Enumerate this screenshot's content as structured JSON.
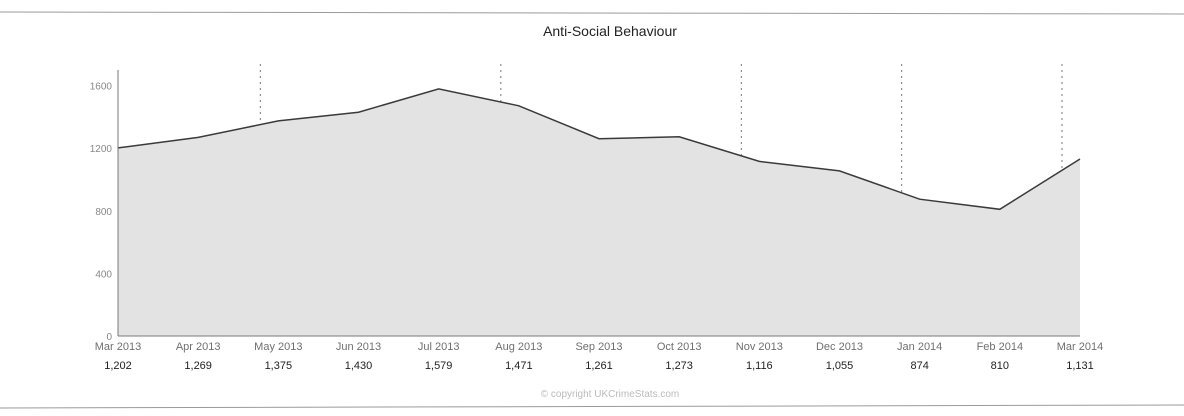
{
  "chart_data": {
    "type": "area",
    "title": "Anti-Social Behaviour",
    "categories": [
      "Mar 2013",
      "Apr 2013",
      "May 2013",
      "Jun 2013",
      "Jul 2013",
      "Aug 2013",
      "Sep 2013",
      "Oct 2013",
      "Nov 2013",
      "Dec 2013",
      "Jan 2014",
      "Feb 2014",
      "Mar 2014"
    ],
    "values": [
      1202,
      1269,
      1375,
      1430,
      1579,
      1471,
      1261,
      1273,
      1116,
      1055,
      874,
      810,
      1131
    ],
    "value_labels": [
      "1,202",
      "1,269",
      "1,375",
      "1,430",
      "1,579",
      "1,471",
      "1,261",
      "1,273",
      "1,116",
      "1,055",
      "874",
      "810",
      "1,131"
    ],
    "y_ticks": [
      0,
      400,
      800,
      1200,
      1600
    ],
    "y_tick_labels": [
      "0",
      "400",
      "800",
      "1200",
      "1600"
    ],
    "ylim": [
      0,
      1700
    ],
    "grid": "vertical dashed",
    "legend": "none",
    "credit": "© copyright UKCrimeStats.com",
    "colors": {
      "area": "#e3e3e3",
      "line": "#3a3a3a",
      "grid": "#777777"
    }
  }
}
